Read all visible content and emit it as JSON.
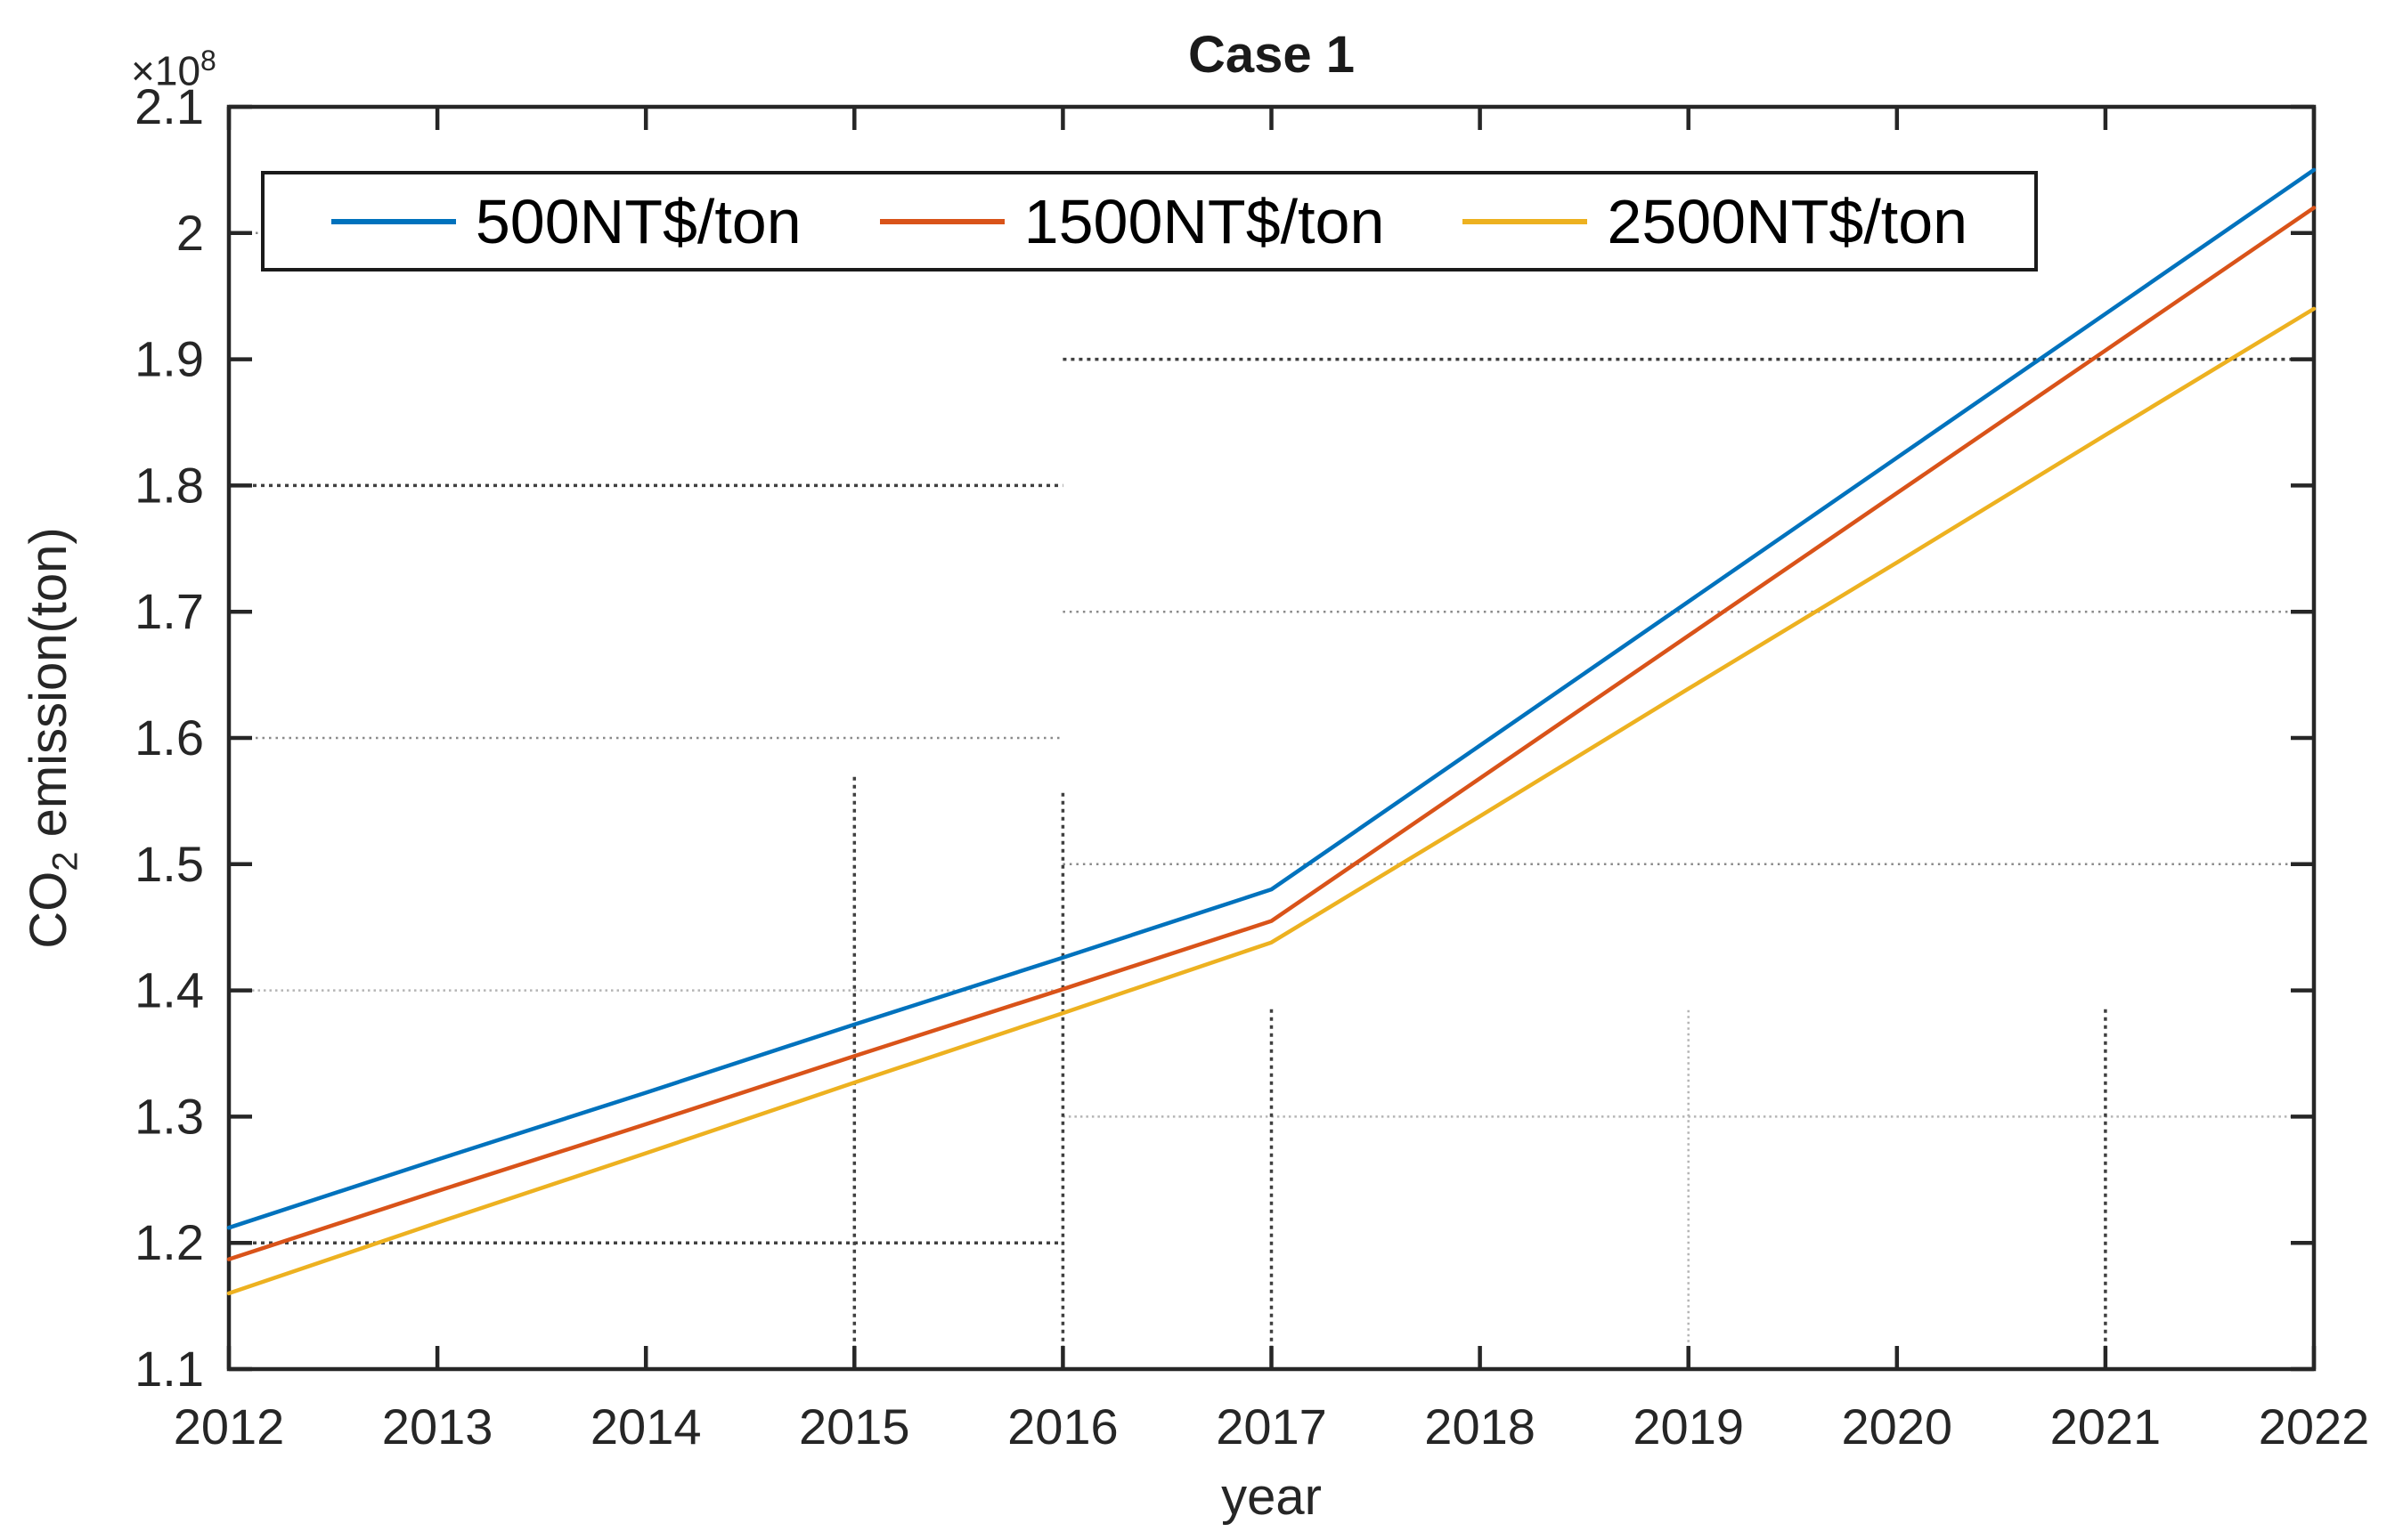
{
  "title": "Case 1",
  "y_axis": {
    "label_prefix": "CO",
    "label_sub": "2",
    "label_suffix": " emission(ton)",
    "multiplier_base": "×10",
    "multiplier_exp": "8",
    "tick_labels": [
      "2.1",
      "2",
      "1.9",
      "1.8",
      "1.7",
      "1.6",
      "1.5",
      "1.4",
      "1.3",
      "1.2",
      "1.1"
    ],
    "tick_values": [
      2.1,
      2.0,
      1.9,
      1.8,
      1.7,
      1.6,
      1.5,
      1.4,
      1.3,
      1.2,
      1.1
    ]
  },
  "x_axis": {
    "label": "year",
    "tick_labels": [
      "2012",
      "2013",
      "2014",
      "2015",
      "2016",
      "2017",
      "2018",
      "2019",
      "2020",
      "2021",
      "2022"
    ],
    "tick_values": [
      2012,
      2013,
      2014,
      2015,
      2016,
      2017,
      2018,
      2019,
      2020,
      2021,
      2022
    ]
  },
  "legend": {
    "position": "top-inside",
    "entries": [
      {
        "label": "500NT$/ton",
        "color": "#0072BD"
      },
      {
        "label": "1500NT$/ton",
        "color": "#D95319"
      },
      {
        "label": "2500NT$/ton",
        "color": "#EDB120"
      }
    ]
  },
  "chart_data": {
    "type": "line",
    "title": "Case 1",
    "xlabel": "year",
    "ylabel": "CO2 emission(ton)",
    "y_unit": "×10^8 ton",
    "xlim": [
      2012,
      2022
    ],
    "ylim": [
      1.1,
      2.1
    ],
    "grid": "partial-dotted",
    "x": [
      2012,
      2013,
      2014,
      2015,
      2016,
      2017,
      2018,
      2019,
      2020,
      2021,
      2022
    ],
    "series": [
      {
        "name": "500NT$/ton",
        "color": "#0072BD",
        "values": [
          1.212,
          1.266,
          1.319,
          1.373,
          1.426,
          1.48,
          1.594,
          1.708,
          1.822,
          1.936,
          2.05
        ]
      },
      {
        "name": "1500NT$/ton",
        "color": "#D95319",
        "values": [
          1.187,
          1.241,
          1.294,
          1.348,
          1.401,
          1.455,
          1.568,
          1.681,
          1.794,
          1.907,
          2.02
        ]
      },
      {
        "name": "2500NT$/ton",
        "color": "#EDB120",
        "values": [
          1.16,
          1.216,
          1.271,
          1.327,
          1.382,
          1.438,
          1.538,
          1.639,
          1.739,
          1.84,
          1.94
        ]
      }
    ],
    "grid_artifacts": {
      "horizontal": [
        {
          "level": 2.0,
          "from_year": 2012,
          "to_year": 2012.15,
          "style": "mid"
        },
        {
          "level": 1.9,
          "from_year": 2016,
          "to_year": 2022,
          "style": "dark"
        },
        {
          "level": 1.8,
          "from_year": 2012,
          "to_year": 2016,
          "style": "dark"
        },
        {
          "level": 1.7,
          "from_year": 2016,
          "to_year": 2022,
          "style": "mid"
        },
        {
          "level": 1.6,
          "from_year": 2012,
          "to_year": 2016,
          "style": "mid"
        },
        {
          "level": 1.5,
          "from_year": 2016,
          "to_year": 2022,
          "style": "mid"
        },
        {
          "level": 1.4,
          "from_year": 2012,
          "to_year": 2016,
          "style": "light"
        },
        {
          "level": 1.3,
          "from_year": 2016,
          "to_year": 2022,
          "style": "light"
        },
        {
          "level": 1.2,
          "from_year": 2012,
          "to_year": 2016,
          "style": "dark"
        }
      ],
      "vertical": [
        {
          "year": 2015,
          "from_level": 1.103,
          "to_level": 1.57,
          "style": "dark"
        },
        {
          "year": 2016,
          "from_level": 1.103,
          "to_level": 1.56,
          "style": "dark"
        },
        {
          "year": 2017,
          "from_level": 1.103,
          "to_level": 1.386,
          "style": "dark"
        },
        {
          "year": 2019,
          "from_level": 1.103,
          "to_level": 1.386,
          "style": "light"
        },
        {
          "year": 2021,
          "from_level": 1.103,
          "to_level": 1.386,
          "style": "dark"
        }
      ]
    }
  }
}
